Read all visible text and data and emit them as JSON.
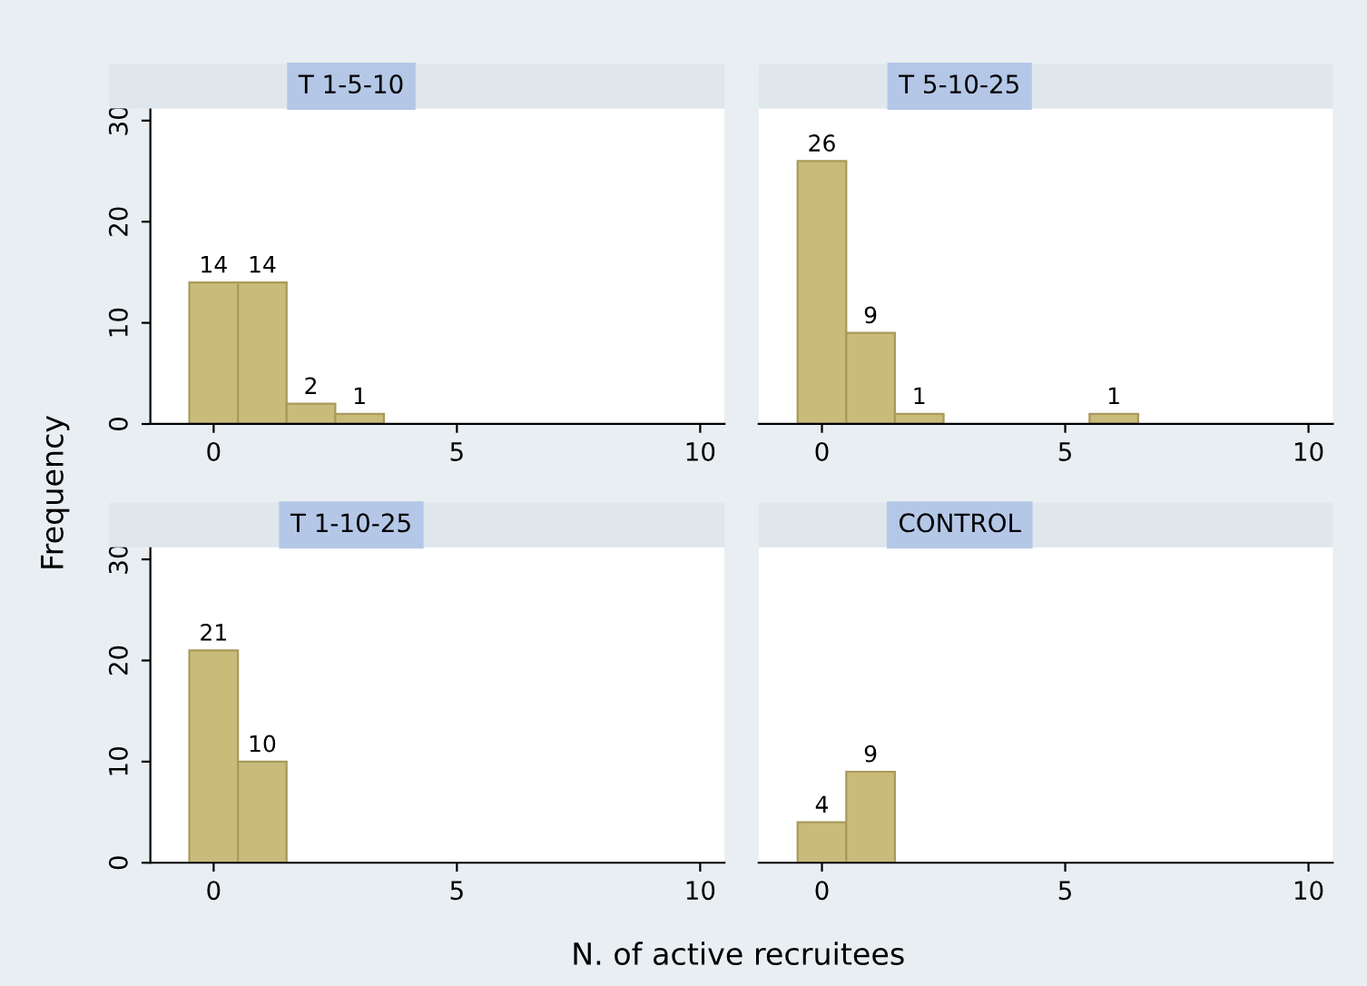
{
  "chart_data": [
    {
      "type": "histogram",
      "title": "T 1-5-10",
      "ylabel": "Frequency",
      "bins": [
        -0.5,
        0.5,
        1.5,
        2.5,
        3.5
      ],
      "values": [
        14,
        14,
        2,
        1
      ],
      "color": "#c9bb7a",
      "data_labels": true,
      "xlim": [
        -1.3,
        10.5
      ],
      "xticks": [
        0,
        5,
        10
      ],
      "ylim": [
        0,
        31.2
      ],
      "yticks": [
        0,
        10,
        20,
        30
      ],
      "grid": false,
      "legend": false
    },
    {
      "type": "histogram",
      "title": "T 5-10-25",
      "bins": [
        -0.5,
        0.5,
        1.5,
        2.5,
        3.5,
        4.5,
        5.5,
        6.5
      ],
      "values": [
        26,
        9,
        1,
        null,
        null,
        null,
        1
      ],
      "color": "#c9bb7a",
      "data_labels": true,
      "xlim": [
        -1.3,
        10.5
      ],
      "xticks": [
        0,
        5,
        10
      ],
      "ylim": [
        0,
        31.2
      ],
      "yticks": [
        0,
        10,
        20,
        30
      ],
      "tick_labels": "x",
      "grid": false,
      "legend": false
    },
    {
      "type": "histogram",
      "title": "T 1-10-25",
      "bins": [
        -0.5,
        0.5,
        1.5
      ],
      "values": [
        21,
        10
      ],
      "color": "#c9bb7a",
      "data_labels": true,
      "xlim": [
        -1.3,
        10.5
      ],
      "xticks": [
        0,
        5,
        10
      ],
      "ylim": [
        0,
        31.2
      ],
      "yticks": [
        0,
        10,
        20,
        30
      ],
      "grid": false,
      "legend": false
    },
    {
      "type": "histogram",
      "title": "CONTROL",
      "xlabel": "N. of active recruitees",
      "bins": [
        -0.5,
        0.5,
        1.5
      ],
      "values": [
        4,
        9
      ],
      "color": "#c9bb7a",
      "data_labels": true,
      "xlim": [
        -1.3,
        10.5
      ],
      "xticks": [
        0,
        5,
        10
      ],
      "ylim": [
        0,
        31.2
      ],
      "yticks": [
        0,
        10,
        20,
        30
      ],
      "tick_labels": "x",
      "grid": false,
      "legend": false
    }
  ]
}
